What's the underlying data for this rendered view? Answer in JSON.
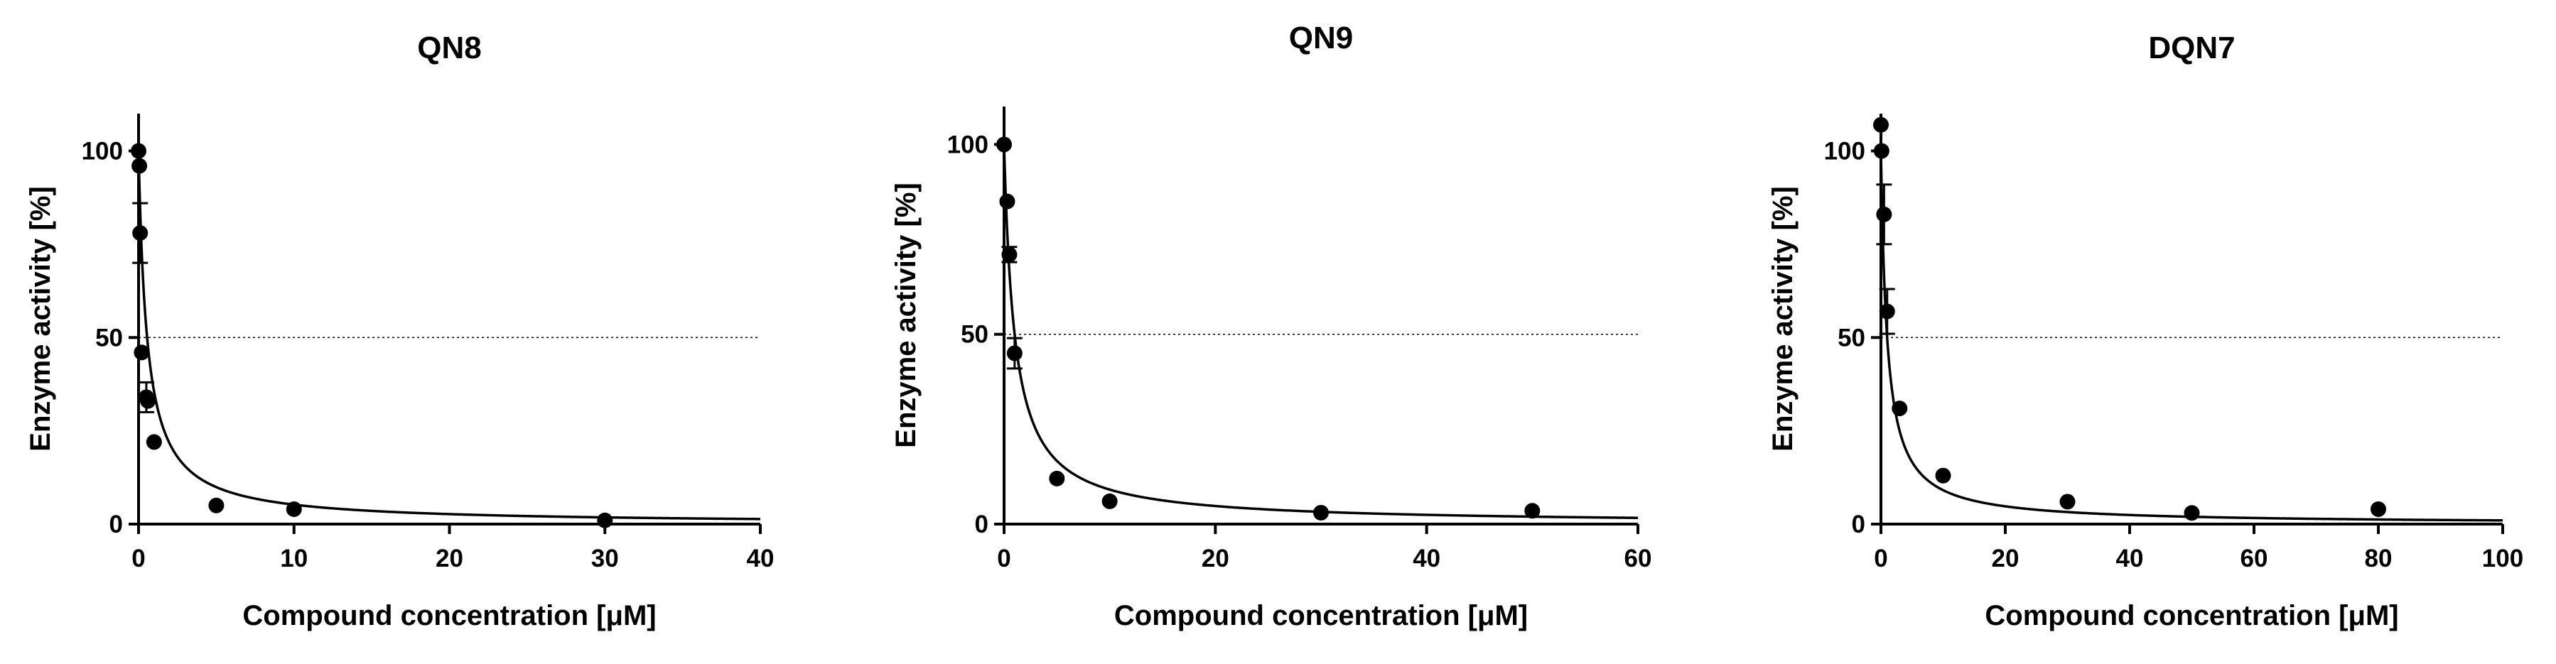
{
  "chart_data": [
    {
      "type": "scatter",
      "title": "QN8",
      "xlabel": "Compound concentration [μM]",
      "ylabel": "Enzyme activity [%]",
      "xlim": [
        0,
        40
      ],
      "ylim": [
        0,
        110
      ],
      "xticks": [
        0,
        10,
        20,
        30,
        40
      ],
      "yticks": [
        0,
        50,
        100
      ],
      "reference_line": 50,
      "fit_ic50": 0.55,
      "series": [
        {
          "x": [
            0,
            0.05,
            0.1,
            0.2,
            0.5,
            0.6,
            1,
            5,
            10,
            30
          ],
          "y": [
            100,
            96,
            78,
            46,
            34,
            33,
            22,
            5,
            4,
            1
          ],
          "err": [
            0,
            0,
            8,
            0,
            4,
            0,
            0,
            0,
            0,
            0
          ]
        }
      ]
    },
    {
      "type": "scatter",
      "title": "QN9",
      "xlabel": "Compound concentration [μM]",
      "ylabel": "Enzyme activity [%]",
      "xlim": [
        0,
        60
      ],
      "ylim": [
        0,
        110
      ],
      "xticks": [
        0,
        20,
        40,
        60
      ],
      "yticks": [
        0,
        50,
        100
      ],
      "reference_line": 50,
      "fit_ic50": 1.0,
      "series": [
        {
          "x": [
            0,
            0.3,
            0.5,
            1,
            5,
            10,
            30,
            50
          ],
          "y": [
            100,
            85,
            71,
            45,
            12,
            6,
            3,
            3.5
          ],
          "err": [
            0,
            0,
            2,
            4,
            0,
            0,
            0,
            0
          ]
        }
      ]
    },
    {
      "type": "scatter",
      "title": "DQN7",
      "xlabel": "Compound concentration [μM]",
      "ylabel": "Enzyme activity [%]",
      "xlim": [
        0,
        100
      ],
      "ylim": [
        0,
        110
      ],
      "xticks": [
        0,
        20,
        40,
        60,
        80,
        100
      ],
      "yticks": [
        0,
        50,
        100
      ],
      "reference_line": 50,
      "fit_ic50": 1.0,
      "series": [
        {
          "x": [
            0,
            0.1,
            0.5,
            1,
            3,
            10,
            30,
            50,
            80
          ],
          "y": [
            107,
            100,
            83,
            57,
            31,
            13,
            6,
            3,
            4
          ],
          "err": [
            0,
            0,
            8,
            6,
            0,
            0,
            0,
            0,
            0
          ]
        }
      ]
    }
  ]
}
